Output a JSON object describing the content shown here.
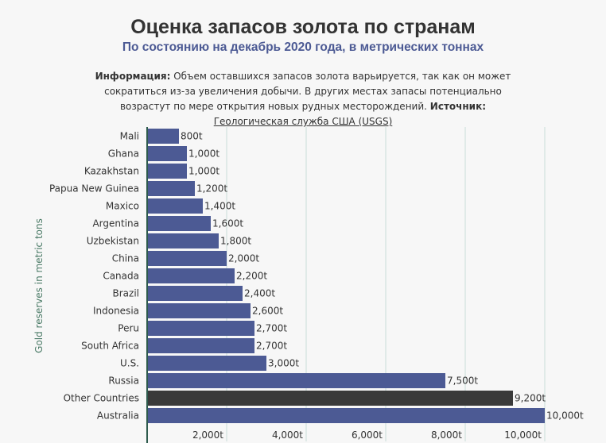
{
  "header": {
    "title": "Оценка запасов золота по странам",
    "subtitle": "По состоянию на декабрь 2020 года, в метрических тоннах"
  },
  "info": {
    "label": "Информация:",
    "text": "Объем оставшихся запасов золота варьируется, так как он может сократиться из-за увеличения добычи. В других местах запасы потенциально возрастут по мере открытия новых рудных месторождений.",
    "source_label": "Источник:",
    "source_text": "Геологическая служба США (USGS)"
  },
  "chart_data": {
    "type": "bar",
    "orientation": "horizontal",
    "categories": [
      "Mali",
      "Ghana",
      "Kazakhstan",
      "Papua New Guinea",
      "Maxico",
      "Argentina",
      "Uzbekistan",
      "China",
      "Canada",
      "Brazil",
      "Indonesia",
      "Peru",
      "South Africa",
      "U.S.",
      "Russia",
      "Other Countries",
      "Australia"
    ],
    "values": [
      800,
      1000,
      1000,
      1200,
      1400,
      1600,
      1800,
      2000,
      2200,
      2400,
      2600,
      2700,
      2700,
      3000,
      7500,
      9200,
      10000
    ],
    "value_labels": [
      "800t",
      "1,000t",
      "1,000t",
      "1,200t",
      "1,400t",
      "1,600t",
      "1,800t",
      "2,000t",
      "2,200t",
      "2,400t",
      "2,600t",
      "2,700t",
      "2,700t",
      "3,000t",
      "7,500t",
      "9,200t",
      "10,000t"
    ],
    "ylabel": "Gold reserves in metric tons",
    "xlim": [
      0,
      10000
    ],
    "x_ticks": [
      2000,
      4000,
      6000,
      8000,
      10000
    ],
    "x_tick_labels": [
      "2,000t",
      "4,000t",
      "6,000t",
      "8,000t",
      "10,000t"
    ],
    "grid": "vertical",
    "colors": {
      "bar": "#4c5a94",
      "highlight_bar": "#3a3a3a",
      "grid": "#c9ded9",
      "axis": "#2e5b4d",
      "ylabel": "#4a7a66"
    },
    "highlight_index": 15
  }
}
